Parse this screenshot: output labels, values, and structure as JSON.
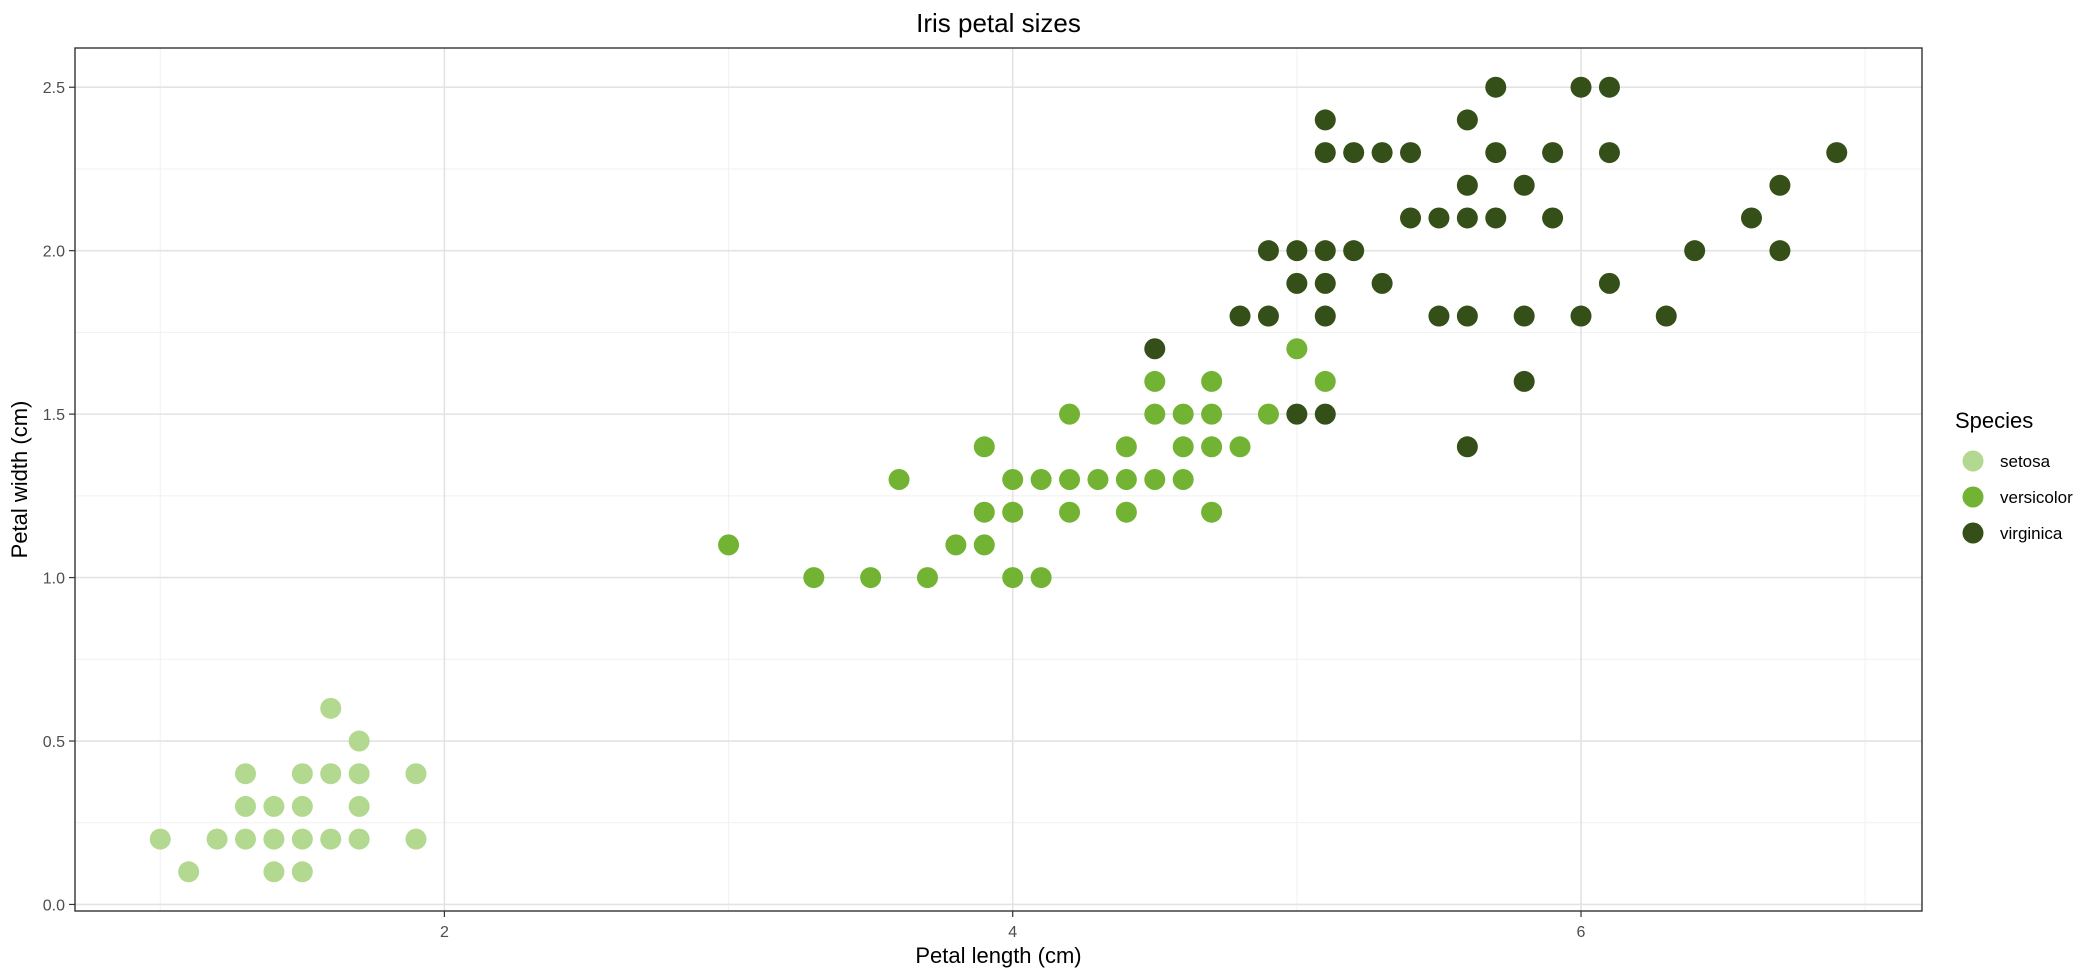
{
  "chart_data": {
    "type": "scatter",
    "title": "Iris petal sizes",
    "xlabel": "Petal length (cm)",
    "ylabel": "Petal width (cm)",
    "xlim": [
      0.7,
      7.2
    ],
    "ylim": [
      -0.02,
      2.62
    ],
    "x_ticks": [
      2,
      4,
      6
    ],
    "y_ticks": [
      0.0,
      0.5,
      1.0,
      1.5,
      2.0,
      2.5
    ],
    "x_tick_labels": [
      "2",
      "4",
      "6"
    ],
    "y_tick_labels": [
      "0.0",
      "0.5",
      "1.0",
      "1.5",
      "2.0",
      "2.5"
    ],
    "grid": true,
    "legend": {
      "title": "Species",
      "position": "right"
    },
    "series": [
      {
        "name": "setosa",
        "color": "#b2d98f",
        "points": [
          [
            1.0,
            0.2
          ],
          [
            1.1,
            0.1
          ],
          [
            1.2,
            0.2
          ],
          [
            1.3,
            0.4
          ],
          [
            1.3,
            0.3
          ],
          [
            1.3,
            0.2
          ],
          [
            1.4,
            0.3
          ],
          [
            1.4,
            0.2
          ],
          [
            1.4,
            0.1
          ],
          [
            1.5,
            0.4
          ],
          [
            1.5,
            0.3
          ],
          [
            1.5,
            0.2
          ],
          [
            1.5,
            0.1
          ],
          [
            1.6,
            0.6
          ],
          [
            1.6,
            0.4
          ],
          [
            1.6,
            0.2
          ],
          [
            1.7,
            0.5
          ],
          [
            1.7,
            0.4
          ],
          [
            1.7,
            0.3
          ],
          [
            1.7,
            0.2
          ],
          [
            1.9,
            0.4
          ],
          [
            1.9,
            0.2
          ]
        ]
      },
      {
        "name": "versicolor",
        "color": "#72b334",
        "points": [
          [
            3.0,
            1.1
          ],
          [
            3.3,
            1.0
          ],
          [
            3.5,
            1.0
          ],
          [
            3.6,
            1.3
          ],
          [
            3.7,
            1.0
          ],
          [
            3.8,
            1.1
          ],
          [
            3.9,
            1.4
          ],
          [
            3.9,
            1.2
          ],
          [
            3.9,
            1.1
          ],
          [
            4.0,
            1.3
          ],
          [
            4.0,
            1.2
          ],
          [
            4.0,
            1.0
          ],
          [
            4.1,
            1.3
          ],
          [
            4.1,
            1.0
          ],
          [
            4.2,
            1.5
          ],
          [
            4.2,
            1.3
          ],
          [
            4.2,
            1.2
          ],
          [
            4.3,
            1.3
          ],
          [
            4.4,
            1.4
          ],
          [
            4.4,
            1.3
          ],
          [
            4.4,
            1.2
          ],
          [
            4.5,
            1.6
          ],
          [
            4.5,
            1.5
          ],
          [
            4.5,
            1.3
          ],
          [
            4.6,
            1.5
          ],
          [
            4.6,
            1.4
          ],
          [
            4.6,
            1.3
          ],
          [
            4.7,
            1.6
          ],
          [
            4.7,
            1.5
          ],
          [
            4.7,
            1.4
          ],
          [
            4.7,
            1.2
          ],
          [
            4.8,
            1.4
          ],
          [
            4.9,
            1.5
          ],
          [
            5.0,
            1.7
          ],
          [
            5.1,
            1.6
          ]
        ]
      },
      {
        "name": "virginica",
        "color": "#354f19",
        "points": [
          [
            4.5,
            1.7
          ],
          [
            4.8,
            1.8
          ],
          [
            4.9,
            2.0
          ],
          [
            4.9,
            1.8
          ],
          [
            5.0,
            2.0
          ],
          [
            5.0,
            1.9
          ],
          [
            5.0,
            1.5
          ],
          [
            5.1,
            2.4
          ],
          [
            5.1,
            2.3
          ],
          [
            5.1,
            2.0
          ],
          [
            5.1,
            1.9
          ],
          [
            5.1,
            1.8
          ],
          [
            5.1,
            1.5
          ],
          [
            5.2,
            2.3
          ],
          [
            5.2,
            2.0
          ],
          [
            5.3,
            2.3
          ],
          [
            5.3,
            1.9
          ],
          [
            5.4,
            2.3
          ],
          [
            5.4,
            2.1
          ],
          [
            5.5,
            2.1
          ],
          [
            5.5,
            1.8
          ],
          [
            5.6,
            2.4
          ],
          [
            5.6,
            2.2
          ],
          [
            5.6,
            2.1
          ],
          [
            5.6,
            1.8
          ],
          [
            5.6,
            1.4
          ],
          [
            5.7,
            2.5
          ],
          [
            5.7,
            2.3
          ],
          [
            5.7,
            2.1
          ],
          [
            5.8,
            2.2
          ],
          [
            5.8,
            1.8
          ],
          [
            5.8,
            1.6
          ],
          [
            5.9,
            2.3
          ],
          [
            5.9,
            2.1
          ],
          [
            6.0,
            2.5
          ],
          [
            6.0,
            1.8
          ],
          [
            6.1,
            2.5
          ],
          [
            6.1,
            2.3
          ],
          [
            6.1,
            1.9
          ],
          [
            6.3,
            1.8
          ],
          [
            6.4,
            2.0
          ],
          [
            6.6,
            2.1
          ],
          [
            6.7,
            2.2
          ],
          [
            6.7,
            2.0
          ],
          [
            6.9,
            2.3
          ]
        ]
      }
    ]
  }
}
